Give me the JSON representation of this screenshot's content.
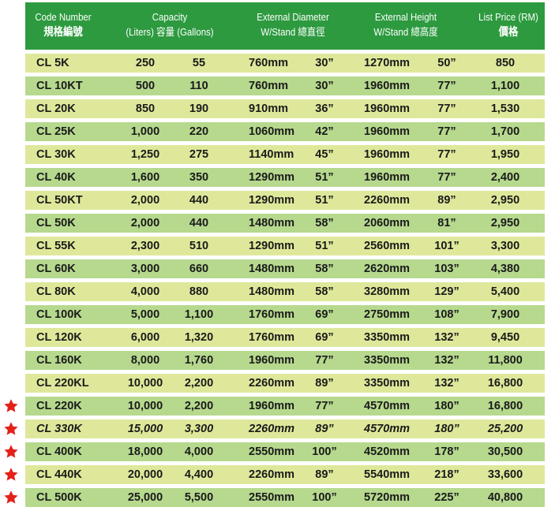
{
  "header": {
    "code_en": "Code Number",
    "code_zh": "規格編號",
    "capacity_en": "Capacity",
    "capacity_sub": "(Liters) 容量 (Gallons)",
    "diameter_en": "External Diameter",
    "diameter_sub": "W/Stand 總直徑",
    "height_en": "External Height",
    "height_sub": "W/Stand 總高度",
    "price_en": "List Price (RM)",
    "price_zh": "價格"
  },
  "colors": {
    "header_bg": "#2d9a3f",
    "row_light": "#dfe89a",
    "row_green": "#b6d98e",
    "star": "#e32119"
  },
  "rows": [
    {
      "code": "CL 5K",
      "liters": "250",
      "gallons": "55",
      "diam_mm": "760mm",
      "diam_in": "30”",
      "height_mm": "1270mm",
      "height_in": "50”",
      "price": "850",
      "star": false,
      "italic": false
    },
    {
      "code": "CL 10KT",
      "liters": "500",
      "gallons": "110",
      "diam_mm": "760mm",
      "diam_in": "30”",
      "height_mm": "1960mm",
      "height_in": "77”",
      "price": "1,100",
      "star": false,
      "italic": false
    },
    {
      "code": "CL 20K",
      "liters": "850",
      "gallons": "190",
      "diam_mm": "910mm",
      "diam_in": "36”",
      "height_mm": "1960mm",
      "height_in": "77”",
      "price": "1,530",
      "star": false,
      "italic": false
    },
    {
      "code": "CL 25K",
      "liters": "1,000",
      "gallons": "220",
      "diam_mm": "1060mm",
      "diam_in": "42”",
      "height_mm": "1960mm",
      "height_in": "77”",
      "price": "1,700",
      "star": false,
      "italic": false
    },
    {
      "code": "CL 30K",
      "liters": "1,250",
      "gallons": "275",
      "diam_mm": "1140mm",
      "diam_in": "45”",
      "height_mm": "1960mm",
      "height_in": "77”",
      "price": "1,950",
      "star": false,
      "italic": false
    },
    {
      "code": "CL 40K",
      "liters": "1,600",
      "gallons": "350",
      "diam_mm": "1290mm",
      "diam_in": "51”",
      "height_mm": "1960mm",
      "height_in": "77”",
      "price": "2,400",
      "star": false,
      "italic": false
    },
    {
      "code": "CL 50KT",
      "liters": "2,000",
      "gallons": "440",
      "diam_mm": "1290mm",
      "diam_in": "51”",
      "height_mm": "2260mm",
      "height_in": "89”",
      "price": "2,950",
      "star": false,
      "italic": false
    },
    {
      "code": "CL 50K",
      "liters": "2,000",
      "gallons": "440",
      "diam_mm": "1480mm",
      "diam_in": "58”",
      "height_mm": "2060mm",
      "height_in": "81”",
      "price": "2,950",
      "star": false,
      "italic": false
    },
    {
      "code": "CL 55K",
      "liters": "2,300",
      "gallons": "510",
      "diam_mm": "1290mm",
      "diam_in": "51”",
      "height_mm": "2560mm",
      "height_in": "101”",
      "price": "3,300",
      "star": false,
      "italic": false
    },
    {
      "code": "CL 60K",
      "liters": "3,000",
      "gallons": "660",
      "diam_mm": "1480mm",
      "diam_in": "58”",
      "height_mm": "2620mm",
      "height_in": "103”",
      "price": "4,380",
      "star": false,
      "italic": false
    },
    {
      "code": "CL 80K",
      "liters": "4,000",
      "gallons": "880",
      "diam_mm": "1480mm",
      "diam_in": "58”",
      "height_mm": "3280mm",
      "height_in": "129”",
      "price": "5,400",
      "star": false,
      "italic": false
    },
    {
      "code": "CL 100K",
      "liters": "5,000",
      "gallons": "1,100",
      "diam_mm": "1760mm",
      "diam_in": "69”",
      "height_mm": "2750mm",
      "height_in": "108”",
      "price": "7,900",
      "star": false,
      "italic": false
    },
    {
      "code": "CL 120K",
      "liters": "6,000",
      "gallons": "1,320",
      "diam_mm": "1760mm",
      "diam_in": "69”",
      "height_mm": "3350mm",
      "height_in": "132”",
      "price": "9,450",
      "star": false,
      "italic": false
    },
    {
      "code": "CL 160K",
      "liters": "8,000",
      "gallons": "1,760",
      "diam_mm": "1960mm",
      "diam_in": "77”",
      "height_mm": "3350mm",
      "height_in": "132”",
      "price": "11,800",
      "star": false,
      "italic": false
    },
    {
      "code": "CL 220KL",
      "liters": "10,000",
      "gallons": "2,200",
      "diam_mm": "2260mm",
      "diam_in": "89”",
      "height_mm": "3350mm",
      "height_in": "132”",
      "price": "16,800",
      "star": false,
      "italic": false
    },
    {
      "code": "CL 220K",
      "liters": "10,000",
      "gallons": "2,200",
      "diam_mm": "1960mm",
      "diam_in": "77”",
      "height_mm": "4570mm",
      "height_in": "180”",
      "price": "16,800",
      "star": true,
      "italic": false
    },
    {
      "code": "CL 330K",
      "liters": "15,000",
      "gallons": "3,300",
      "diam_mm": "2260mm",
      "diam_in": "89”",
      "height_mm": "4570mm",
      "height_in": "180”",
      "price": "25,200",
      "star": true,
      "italic": true
    },
    {
      "code": "CL 400K",
      "liters": "18,000",
      "gallons": "4,000",
      "diam_mm": "2550mm",
      "diam_in": "100”",
      "height_mm": "4520mm",
      "height_in": "178”",
      "price": "30,500",
      "star": true,
      "italic": false
    },
    {
      "code": "CL 440K",
      "liters": "20,000",
      "gallons": "4,400",
      "diam_mm": "2260mm",
      "diam_in": "89”",
      "height_mm": "5540mm",
      "height_in": "218”",
      "price": "33,600",
      "star": true,
      "italic": false
    },
    {
      "code": "CL 500K",
      "liters": "25,000",
      "gallons": "5,500",
      "diam_mm": "2550mm",
      "diam_in": "100”",
      "height_mm": "5720mm",
      "height_in": "225”",
      "price": "40,800",
      "star": true,
      "italic": false
    }
  ]
}
